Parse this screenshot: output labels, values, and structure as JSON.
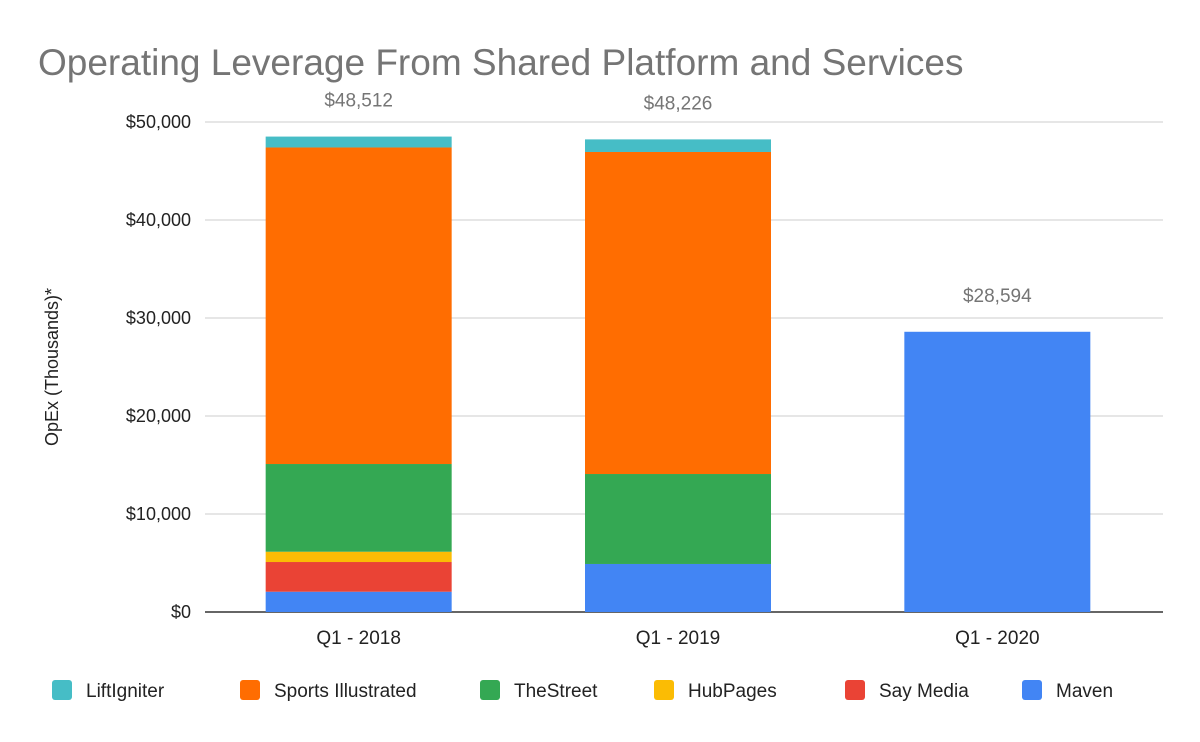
{
  "chart_data": {
    "type": "bar",
    "stacked": true,
    "title": "Operating Leverage From Shared Platform and Services",
    "xlabel": "",
    "ylabel": "OpEx (Thousands)*",
    "ylim": [
      0,
      50000
    ],
    "yticks": [
      0,
      10000,
      20000,
      30000,
      40000,
      50000
    ],
    "ytick_labels": [
      "$0",
      "$10,000",
      "$20,000",
      "$30,000",
      "$40,000",
      "$50,000"
    ],
    "grid": true,
    "legend_position": "bottom",
    "categories": [
      "Q1 - 2018",
      "Q1 - 2019",
      "Q1 - 2020"
    ],
    "totals": [
      "$48,512",
      "$48,226",
      "$28,594"
    ],
    "total_values": [
      48512,
      48226,
      28594
    ],
    "series": [
      {
        "name": "Maven",
        "color": "#4285f4",
        "values": [
          2070,
          4900,
          28594
        ]
      },
      {
        "name": "Say Media",
        "color": "#ea4335",
        "values": [
          3030,
          0,
          0
        ]
      },
      {
        "name": "HubPages",
        "color": "#fbbc04",
        "values": [
          1050,
          0,
          0
        ]
      },
      {
        "name": "TheStreet",
        "color": "#34a853",
        "values": [
          8950,
          9180,
          0
        ]
      },
      {
        "name": "Sports Illustrated",
        "color": "#ff6d01",
        "values": [
          32300,
          32860,
          0
        ]
      },
      {
        "name": "LiftIgniter",
        "color": "#46bdc6",
        "values": [
          1112,
          1286,
          0
        ]
      }
    ],
    "legend_order": [
      "LiftIgniter",
      "Sports Illustrated",
      "TheStreet",
      "HubPages",
      "Say Media",
      "Maven"
    ]
  }
}
